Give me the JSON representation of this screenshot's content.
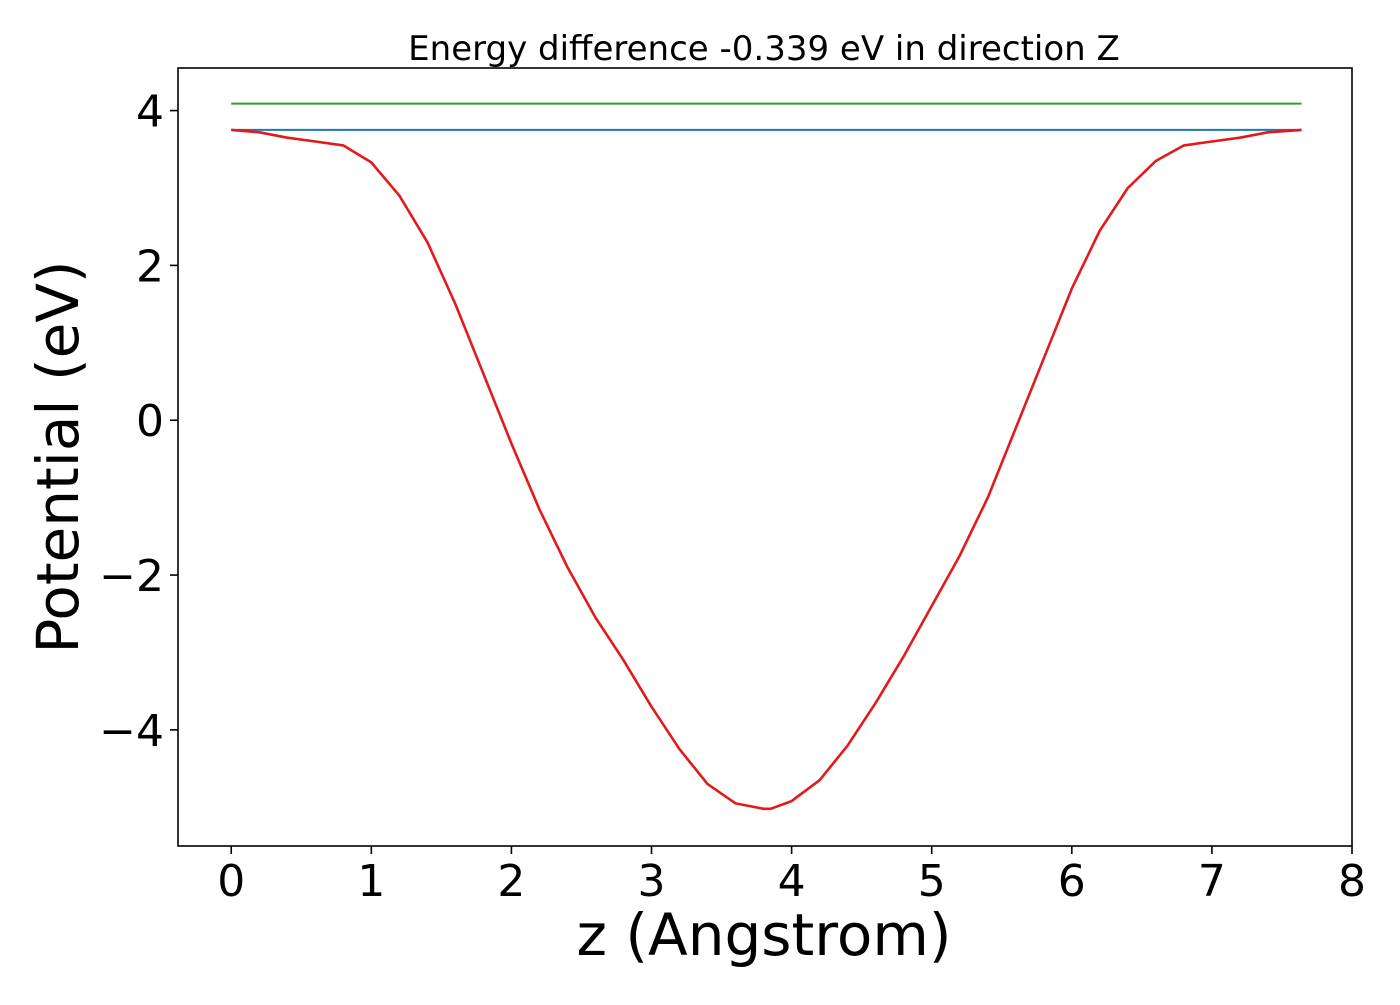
{
  "chart_data": {
    "type": "line",
    "title": "Energy difference -0.339 eV in direction Z",
    "xlabel": "z (Angstrom)",
    "ylabel": "Potential (eV)",
    "xlim": [
      -0.38,
      8.0
    ],
    "ylim": [
      -5.5,
      4.55
    ],
    "xticks": [
      0,
      1,
      2,
      3,
      4,
      5,
      6,
      7,
      8
    ],
    "xtick_labels": [
      "0",
      "1",
      "2",
      "3",
      "4",
      "5",
      "6",
      "7",
      "8"
    ],
    "yticks": [
      -4,
      -2,
      0,
      2,
      4
    ],
    "ytick_labels": [
      "−4",
      "−2",
      "0",
      "2",
      "4"
    ],
    "grid": false,
    "legend": "none",
    "series": [
      {
        "color": "#2ca02c",
        "x": [
          0,
          7.64
        ],
        "y": [
          4.09,
          4.09
        ]
      },
      {
        "color": "#1f77b4",
        "x": [
          0,
          7.64
        ],
        "y": [
          3.75,
          3.75
        ]
      },
      {
        "color": "#e31a1c",
        "x": [
          0.0,
          0.2,
          0.4,
          0.6,
          0.8,
          1.0,
          1.2,
          1.4,
          1.6,
          1.8,
          2.0,
          2.2,
          2.4,
          2.6,
          2.8,
          3.0,
          3.2,
          3.4,
          3.6,
          3.8,
          3.85,
          4.0,
          4.2,
          4.4,
          4.6,
          4.8,
          5.0,
          5.2,
          5.4,
          5.6,
          5.8,
          6.0,
          6.2,
          6.4,
          6.6,
          6.8,
          7.0,
          7.2,
          7.4,
          7.64
        ],
        "y": [
          3.75,
          3.72,
          3.65,
          3.6,
          3.55,
          3.33,
          2.9,
          2.3,
          1.5,
          0.6,
          -0.3,
          -1.15,
          -1.9,
          -2.55,
          -3.1,
          -3.7,
          -4.25,
          -4.7,
          -4.95,
          -5.02,
          -5.02,
          -4.92,
          -4.65,
          -4.2,
          -3.65,
          -3.05,
          -2.4,
          -1.75,
          -1.0,
          -0.1,
          0.8,
          1.7,
          2.45,
          3.0,
          3.35,
          3.55,
          3.6,
          3.65,
          3.72,
          3.75
        ]
      }
    ]
  }
}
